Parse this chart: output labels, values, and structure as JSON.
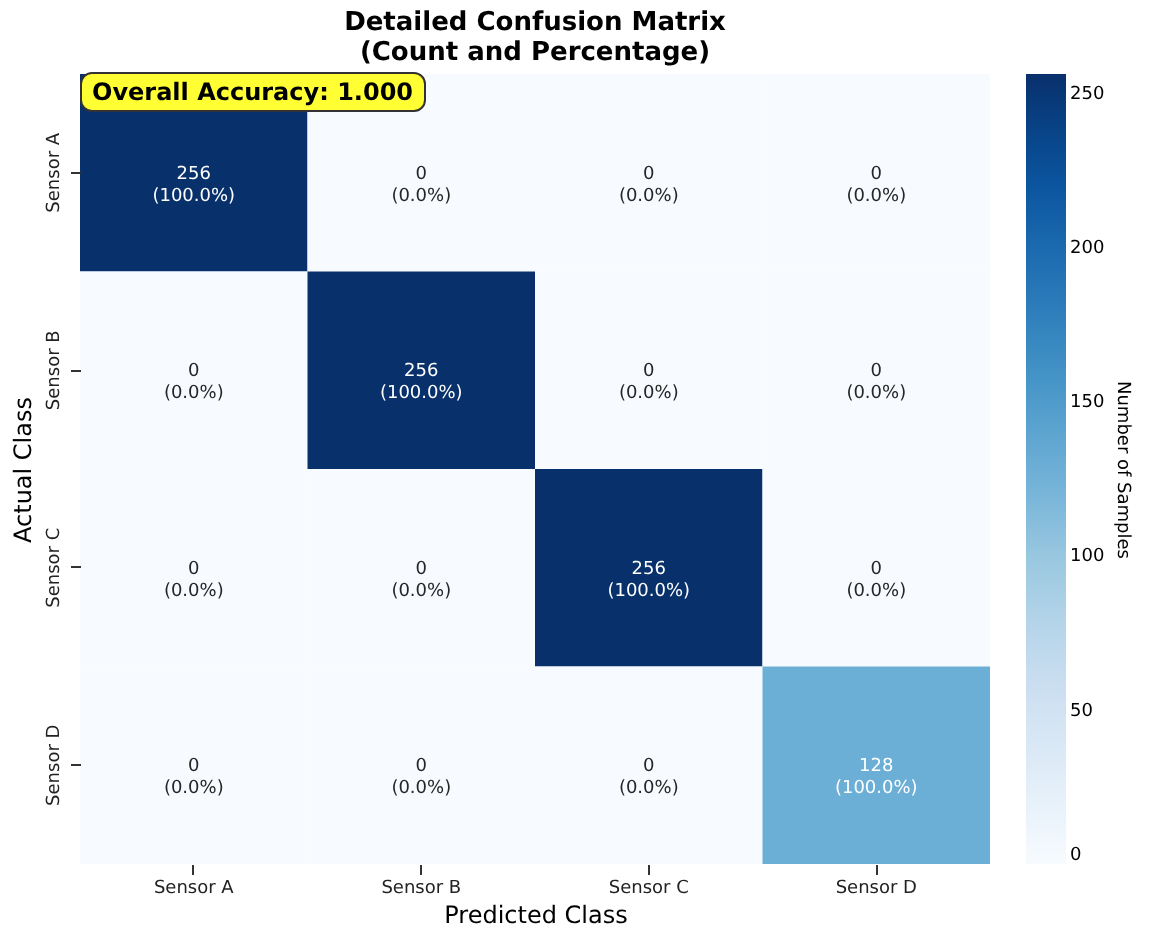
{
  "chart_data": {
    "type": "heatmap",
    "title": "Detailed Confusion Matrix\n(Count and Percentage)",
    "xlabel": "Predicted Class",
    "ylabel": "Actual Class",
    "clabel": "Number of Samples",
    "categories": [
      "Sensor A",
      "Sensor B",
      "Sensor C",
      "Sensor D"
    ],
    "y_categories": [
      "Sensor A",
      "Sensor B",
      "Sensor C",
      "Sensor D"
    ],
    "cells": [
      [
        256,
        0,
        0,
        0
      ],
      [
        0,
        256,
        0,
        0
      ],
      [
        0,
        0,
        256,
        0
      ],
      [
        0,
        0,
        0,
        128
      ]
    ],
    "cell_labels": [
      [
        "256\n(100.0%)",
        "0\n(0.0%)",
        "0\n(0.0%)",
        "0\n(0.0%)"
      ],
      [
        "0\n(0.0%)",
        "256\n(100.0%)",
        "0\n(0.0%)",
        "0\n(0.0%)"
      ],
      [
        "0\n(0.0%)",
        "0\n(0.0%)",
        "256\n(100.0%)",
        "0\n(0.0%)"
      ],
      [
        "0\n(0.0%)",
        "0\n(0.0%)",
        "0\n(0.0%)",
        "128\n(100.0%)"
      ]
    ],
    "clim": [
      0,
      256
    ],
    "cticks": [
      0,
      50,
      100,
      150,
      200,
      250
    ],
    "annotations": [
      "Overall Accuracy: 1.000"
    ]
  }
}
